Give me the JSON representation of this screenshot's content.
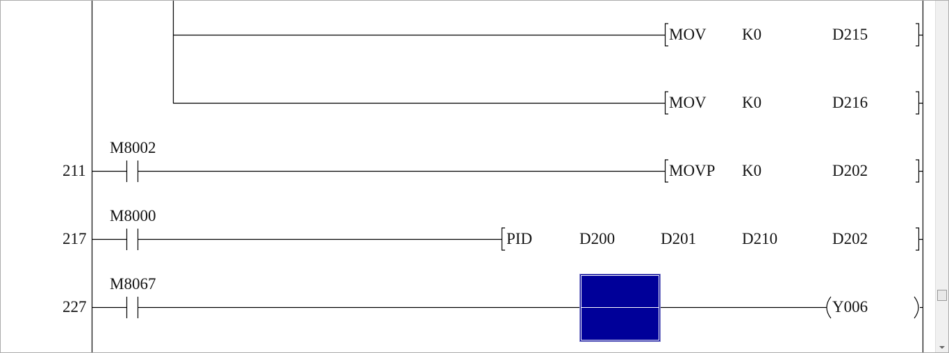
{
  "rungs": [
    {
      "step": "",
      "contact": "",
      "instr": "MOV",
      "ops": [
        "K0",
        "D215"
      ]
    },
    {
      "step": "",
      "contact": "",
      "instr": "MOV",
      "ops": [
        "K0",
        "D216"
      ]
    },
    {
      "step": "211",
      "contact": "M8002",
      "instr": "MOVP",
      "ops": [
        "K0",
        "D202"
      ]
    },
    {
      "step": "217",
      "contact": "M8000",
      "instr": "PID",
      "ops": [
        "D200",
        "D201",
        "D210",
        "D202"
      ]
    },
    {
      "step": "227",
      "contact": "M8067",
      "coil": "Y006"
    }
  ],
  "colors": {
    "cursor": "#000099"
  }
}
